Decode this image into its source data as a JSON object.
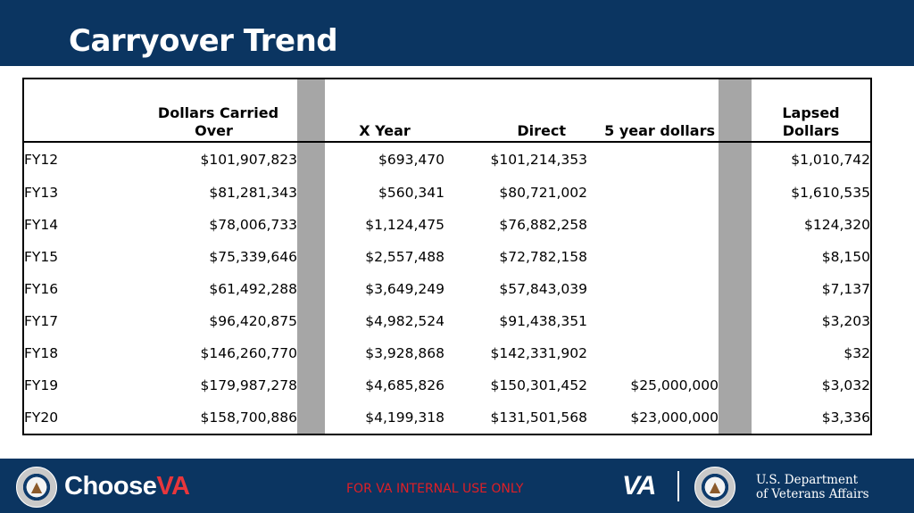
{
  "slide": {
    "title": "Carryover Trend"
  },
  "table": {
    "headers": {
      "label": "",
      "carried_line1": "Dollars Carried",
      "carried_line2": "Over",
      "x_year": "X Year",
      "direct": "Direct",
      "five_year": "5 year dollars",
      "lapsed_line1": "Lapsed",
      "lapsed_line2": "Dollars"
    },
    "rows": [
      {
        "fy": "FY12",
        "carried": "$101,907,823",
        "x_year": "$693,470",
        "direct": "$101,214,353",
        "five_year": "",
        "lapsed": "$1,010,742"
      },
      {
        "fy": "FY13",
        "carried": "$81,281,343",
        "x_year": "$560,341",
        "direct": "$80,721,002",
        "five_year": "",
        "lapsed": "$1,610,535"
      },
      {
        "fy": "FY14",
        "carried": "$78,006,733",
        "x_year": "$1,124,475",
        "direct": "$76,882,258",
        "five_year": "",
        "lapsed": "$124,320"
      },
      {
        "fy": "FY15",
        "carried": "$75,339,646",
        "x_year": "$2,557,488",
        "direct": "$72,782,158",
        "five_year": "",
        "lapsed": "$8,150"
      },
      {
        "fy": "FY16",
        "carried": "$61,492,288",
        "x_year": "$3,649,249",
        "direct": "$57,843,039",
        "five_year": "",
        "lapsed": "$7,137"
      },
      {
        "fy": "FY17",
        "carried": "$96,420,875",
        "x_year": "$4,982,524",
        "direct": "$91,438,351",
        "five_year": "",
        "lapsed": "$3,203"
      },
      {
        "fy": "FY18",
        "carried": "$146,260,770",
        "x_year": "$3,928,868",
        "direct": "$142,331,902",
        "five_year": "",
        "lapsed": "$32"
      },
      {
        "fy": "FY19",
        "carried": "$179,987,278",
        "x_year": "$4,685,826",
        "direct": "$150,301,452",
        "five_year": "$25,000,000",
        "lapsed": "$3,032"
      },
      {
        "fy": "FY20",
        "carried": "$158,700,886",
        "x_year": "$4,199,318",
        "direct": "$131,501,568",
        "five_year": "$23,000,000",
        "lapsed": "$3,336"
      }
    ]
  },
  "footer": {
    "choose_prefix": "Choose",
    "choose_accent": "VA",
    "internal_notice": "FOR VA INTERNAL USE ONLY",
    "va_mark": "VA",
    "dept_line1": "U.S. Department",
    "dept_line2": "of Veterans Affairs",
    "left_seal_icon": "va-seal-icon",
    "right_seal_icon": "va-seal-icon"
  },
  "colors": {
    "header_bg": "#0b3561",
    "footer_bg": "#0b3561",
    "spacer_gray": "#a6a6a6",
    "notice_red": "#e01f26",
    "accent_red": "#e8363c"
  }
}
